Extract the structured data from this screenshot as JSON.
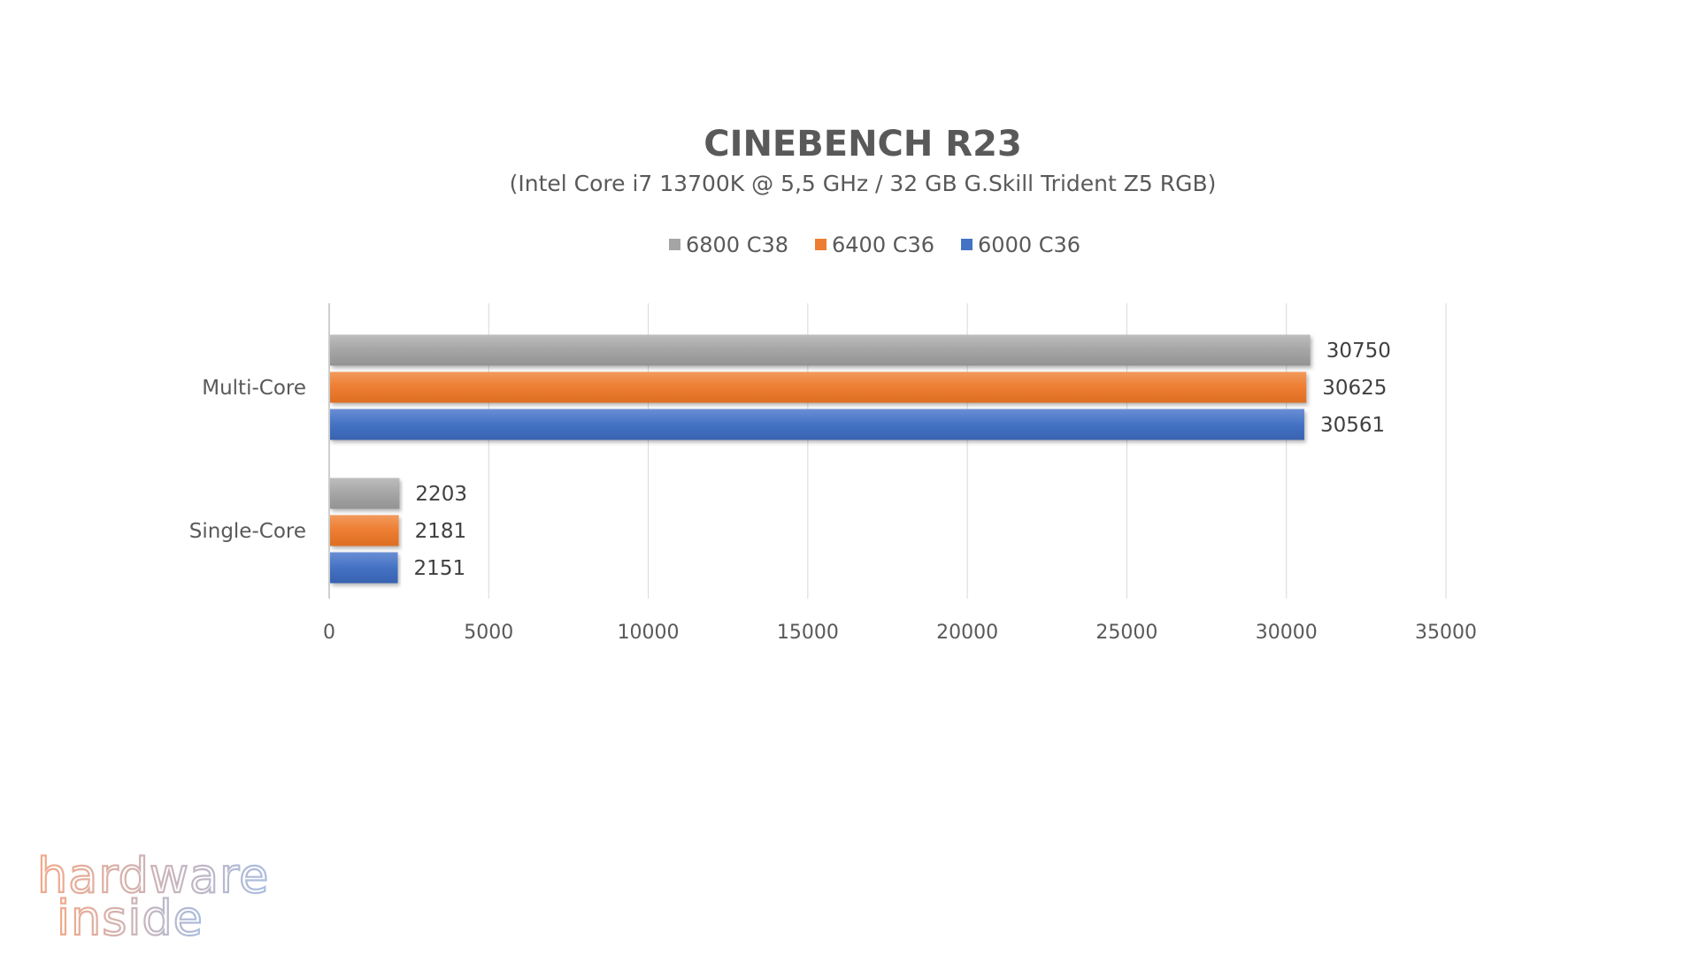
{
  "chart_data": {
    "type": "bar",
    "orientation": "horizontal",
    "title": "CINEBENCH R23",
    "subtitle": "(Intel Core i7 13700K @ 5,5 GHz / 32 GB G.Skill Trident Z5 RGB)",
    "categories": [
      "Multi-Core",
      "Single-Core"
    ],
    "series": [
      {
        "name": "6800 C38",
        "color": "#a5a5a5",
        "values": [
          30750,
          2203
        ]
      },
      {
        "name": "6400 C36",
        "color": "#ed7d31",
        "values": [
          30625,
          2181
        ]
      },
      {
        "name": "6000 C36",
        "color": "#4472c4",
        "values": [
          30561,
          2151
        ]
      }
    ],
    "xlim": [
      0,
      35000
    ],
    "xticks": [
      0,
      5000,
      10000,
      15000,
      20000,
      25000,
      30000,
      35000
    ],
    "xlabel": "",
    "ylabel": "",
    "grid": "vertical",
    "legend": "top-center",
    "data_labels": true
  },
  "watermark": {
    "line1": "hardware",
    "line2": "inside",
    "colors": [
      "#f2a98a",
      "#a9bde0"
    ]
  }
}
